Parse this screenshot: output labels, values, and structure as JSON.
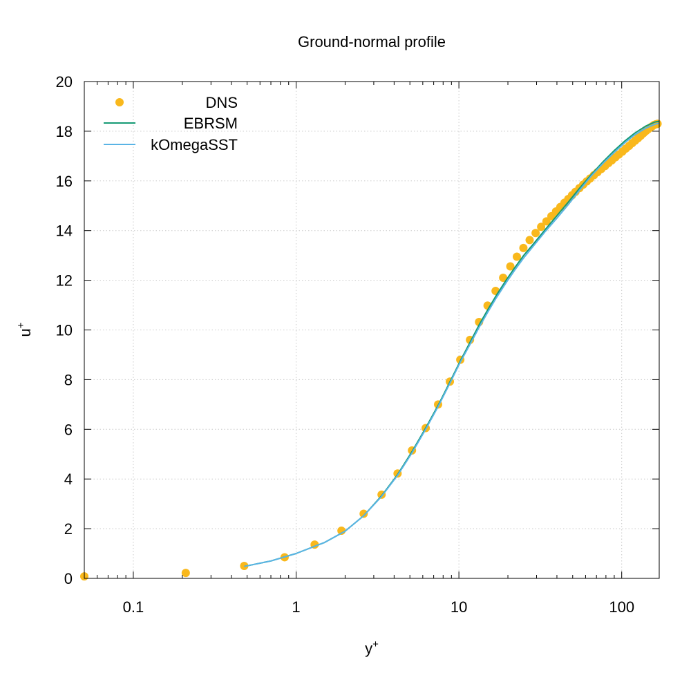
{
  "chart_data": {
    "type": "line",
    "title": "Ground-normal profile",
    "xlabel": "y",
    "xlabel_sup": "+",
    "ylabel": "u",
    "ylabel_sup": "+",
    "x_scale": "log",
    "xlim": [
      0.05,
      170
    ],
    "ylim": [
      0,
      20
    ],
    "x_ticks": [
      {
        "value": 0.1,
        "label": "0.1"
      },
      {
        "value": 1,
        "label": "1"
      },
      {
        "value": 10,
        "label": "10"
      },
      {
        "value": 100,
        "label": "100"
      }
    ],
    "y_ticks": [
      {
        "value": 0,
        "label": "0"
      },
      {
        "value": 2,
        "label": "2"
      },
      {
        "value": 4,
        "label": "4"
      },
      {
        "value": 6,
        "label": "6"
      },
      {
        "value": 8,
        "label": "8"
      },
      {
        "value": 10,
        "label": "10"
      },
      {
        "value": 12,
        "label": "12"
      },
      {
        "value": 14,
        "label": "14"
      },
      {
        "value": 16,
        "label": "16"
      },
      {
        "value": 18,
        "label": "18"
      },
      {
        "value": 20,
        "label": "20"
      }
    ],
    "grid": true,
    "legend_position": "top-left",
    "series": [
      {
        "name": "DNS",
        "style": "points",
        "color": "#f9b81c",
        "x": [
          0.05,
          0.21,
          0.48,
          0.85,
          1.3,
          1.9,
          2.6,
          3.35,
          4.2,
          5.15,
          6.25,
          7.45,
          8.8,
          10.2,
          11.7,
          13.3,
          15.0,
          16.8,
          18.7,
          20.7,
          22.7,
          24.9,
          27.2,
          29.6,
          32.0,
          34.5,
          37.0,
          39.5,
          42.0,
          44.5,
          47.0,
          49.5,
          52.0,
          55.0,
          58.0,
          61.0,
          64.0,
          67.5,
          71.0,
          75.0,
          79.0,
          83.0,
          87.0,
          91.5,
          96.0,
          101.0,
          106.0,
          111.0,
          116.0,
          121.0,
          126.0,
          131.0,
          136.0,
          141.0,
          146.0,
          150.0,
          154.0,
          158.0,
          162.0,
          166.0
        ],
        "y": [
          0.08,
          0.22,
          0.5,
          0.85,
          1.36,
          1.92,
          2.6,
          3.37,
          4.22,
          5.15,
          6.05,
          7.0,
          7.92,
          8.8,
          9.6,
          10.32,
          10.98,
          11.57,
          12.1,
          12.56,
          12.95,
          13.3,
          13.62,
          13.9,
          14.15,
          14.37,
          14.58,
          14.77,
          14.95,
          15.12,
          15.27,
          15.42,
          15.56,
          15.71,
          15.85,
          15.98,
          16.1,
          16.23,
          16.35,
          16.48,
          16.6,
          16.72,
          16.83,
          16.95,
          17.06,
          17.18,
          17.3,
          17.41,
          17.52,
          17.62,
          17.72,
          17.82,
          17.92,
          18.01,
          18.09,
          18.15,
          18.2,
          18.25,
          18.28,
          18.3
        ]
      },
      {
        "name": "EBRSM",
        "style": "line",
        "color": "#159a74",
        "x": [
          0.48,
          0.7,
          1.0,
          1.5,
          2.0,
          2.6,
          3.35,
          4.2,
          5.15,
          6.25,
          7.5,
          8.8,
          10.2,
          11.7,
          13.3,
          15.0,
          17.0,
          19.5,
          22.0,
          25.0,
          29.0,
          34.0,
          40.0,
          47.0,
          55.0,
          65.0,
          77.0,
          90.0,
          105.0,
          120.0,
          140.0,
          160.0,
          170.0
        ],
        "y": [
          0.48,
          0.7,
          1.0,
          1.45,
          1.9,
          2.52,
          3.32,
          4.18,
          5.1,
          6.05,
          7.0,
          7.9,
          8.75,
          9.5,
          10.2,
          10.8,
          11.4,
          12.0,
          12.5,
          13.0,
          13.5,
          14.05,
          14.6,
          15.15,
          15.7,
          16.25,
          16.78,
          17.22,
          17.62,
          17.92,
          18.2,
          18.37,
          18.4
        ]
      },
      {
        "name": "kOmegaSST",
        "style": "line",
        "color": "#5ab4e5",
        "x": [
          0.48,
          0.7,
          1.0,
          1.5,
          2.0,
          2.6,
          3.35,
          4.2,
          5.15,
          6.25,
          7.5,
          8.8,
          10.2,
          11.7,
          13.3,
          15.0,
          17.0,
          19.5,
          22.0,
          25.0,
          29.0,
          34.0,
          40.0,
          47.0,
          55.0,
          65.0,
          77.0,
          90.0,
          105.0,
          120.0,
          140.0,
          160.0,
          170.0
        ],
        "y": [
          0.48,
          0.7,
          1.0,
          1.45,
          1.9,
          2.52,
          3.3,
          4.15,
          5.05,
          6.0,
          6.95,
          7.85,
          8.7,
          9.42,
          10.1,
          10.7,
          11.3,
          11.9,
          12.4,
          12.9,
          13.42,
          13.97,
          14.5,
          15.05,
          15.62,
          16.2,
          16.72,
          17.15,
          17.55,
          17.85,
          18.12,
          18.28,
          18.32
        ]
      }
    ]
  }
}
